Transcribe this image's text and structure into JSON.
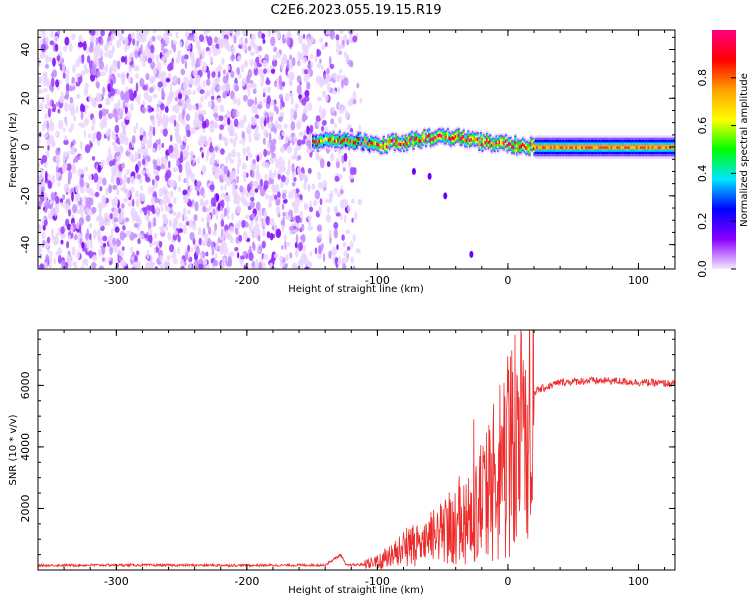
{
  "title": "C2E6.2023.055.19.15.R19",
  "chart_data": [
    {
      "type": "heatmap",
      "xlabel": "Height of straight line (km)",
      "ylabel": "Frequency (Hz)",
      "xlim": [
        -360,
        128
      ],
      "ylim": [
        -50,
        48
      ],
      "xticks": [
        -300,
        -200,
        -100,
        0,
        100
      ],
      "yticks": [
        -40,
        -20,
        0,
        20,
        40
      ],
      "noise_region_x": [
        -360,
        -112
      ],
      "signal_band": {
        "x_start": -150,
        "x_end": 128,
        "center_freq_points": [
          [
            -150,
            2
          ],
          [
            -120,
            3
          ],
          [
            -100,
            1
          ],
          [
            -80,
            2
          ],
          [
            -60,
            4
          ],
          [
            -40,
            4
          ],
          [
            -20,
            2
          ],
          [
            0,
            1
          ],
          [
            20,
            0
          ],
          [
            60,
            0
          ],
          [
            128,
            0
          ]
        ],
        "half_width_hz": 3
      },
      "colorbar": {
        "label": "Normalized spectral amplitude",
        "range": [
          0.0,
          1.0
        ],
        "ticks": [
          0.0,
          0.2,
          0.4,
          0.6,
          0.8
        ],
        "tick_labels": [
          "0.0",
          "0.2",
          "0.4",
          "0.6",
          "0.8"
        ],
        "colormap": [
          "#f5eaff",
          "#8a00ff",
          "#0000ff",
          "#00e5ff",
          "#00ff00",
          "#ffff00",
          "#ffa000",
          "#ff0000",
          "#ff0080"
        ]
      }
    },
    {
      "type": "line",
      "xlabel": "Height of straight line (km)",
      "ylabel": "SNR (10 * v/v)",
      "xlim": [
        -360,
        128
      ],
      "ylim": [
        0,
        7800
      ],
      "xticks": [
        -300,
        -200,
        -100,
        0,
        100
      ],
      "yticks": [
        2000,
        4000,
        6000
      ],
      "color": "#ee2b2b",
      "series": [
        {
          "points": [
            [
              -360,
              150
            ],
            [
              -300,
              160
            ],
            [
              -200,
              150
            ],
            [
              -140,
              160
            ],
            [
              -128,
              500
            ],
            [
              -124,
              150
            ],
            [
              -110,
              180
            ],
            [
              -100,
              250
            ],
            [
              -90,
              500
            ],
            [
              -80,
              700
            ],
            [
              -70,
              900
            ],
            [
              -60,
              1000
            ],
            [
              -50,
              1200
            ],
            [
              -40,
              1500
            ],
            [
              -30,
              1900
            ],
            [
              -20,
              2300
            ],
            [
              -10,
              2800
            ],
            [
              -5,
              3400
            ],
            [
              0,
              3800
            ],
            [
              5,
              4000
            ],
            [
              10,
              4600
            ],
            [
              15,
              5400
            ],
            [
              20,
              5800
            ],
            [
              30,
              5950
            ],
            [
              40,
              6100
            ],
            [
              60,
              6150
            ],
            [
              80,
              6150
            ],
            [
              100,
              6100
            ],
            [
              128,
              6050
            ]
          ],
          "peaks": [
            [
              10,
              7800
            ],
            [
              -11,
              5400
            ],
            [
              -5,
              4700
            ],
            [
              -26,
              4900
            ]
          ]
        }
      ]
    }
  ]
}
